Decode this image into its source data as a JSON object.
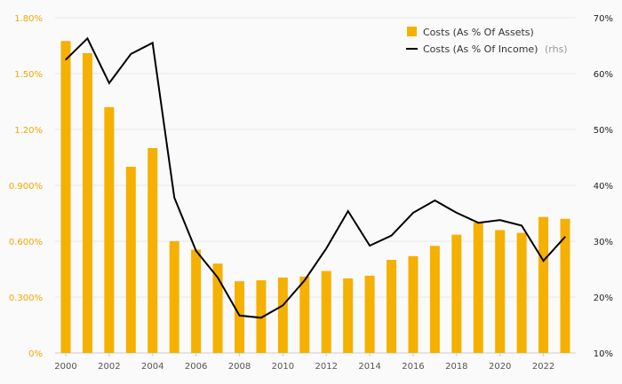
{
  "chart_data": {
    "type": "bar+line",
    "x": [
      2000,
      2001,
      2002,
      2003,
      2004,
      2005,
      2006,
      2007,
      2008,
      2009,
      2010,
      2011,
      2012,
      2013,
      2014,
      2015,
      2016,
      2017,
      2018,
      2019,
      2020,
      2021,
      2022,
      2023
    ],
    "x_tick_labels": [
      "2000",
      "2002",
      "2004",
      "2006",
      "2008",
      "2010",
      "2012",
      "2014",
      "2016",
      "2018",
      "2020",
      "2022"
    ],
    "series": [
      {
        "name": "Costs (As % Of Assets)",
        "type": "bar",
        "axis": "left",
        "color": "#f5b000",
        "values": [
          1.675,
          1.61,
          1.32,
          1.0,
          1.1,
          0.6,
          0.555,
          0.48,
          0.385,
          0.39,
          0.405,
          0.41,
          0.44,
          0.4,
          0.415,
          0.5,
          0.52,
          0.575,
          0.635,
          0.7,
          0.66,
          0.645,
          0.73,
          0.72
        ]
      },
      {
        "name": "Costs (As % Of Income)",
        "name_suffix": "(rhs)",
        "type": "line",
        "axis": "right",
        "color": "#000000",
        "values": [
          62.5,
          66.3,
          58.3,
          63.5,
          65.5,
          37.8,
          28.3,
          23.5,
          16.7,
          16.3,
          18.5,
          23.0,
          28.7,
          35.4,
          29.2,
          31.0,
          35.1,
          37.3,
          35.1,
          33.3,
          33.8,
          32.8,
          26.5,
          30.8
        ]
      }
    ],
    "y_left": {
      "lim": [
        0,
        1.8
      ],
      "ticks": [
        0,
        0.3,
        0.6,
        0.9,
        1.2,
        1.5,
        1.8
      ],
      "tick_labels": [
        "0%",
        "0.300%",
        "0.600%",
        "0.900%",
        "1.20%",
        "1.50%",
        "1.80%"
      ]
    },
    "y_right": {
      "lim": [
        10,
        70
      ],
      "ticks": [
        10,
        20,
        30,
        40,
        50,
        60,
        70
      ],
      "tick_labels": [
        "10%",
        "20%",
        "30%",
        "40%",
        "50%",
        "60%",
        "70%"
      ]
    },
    "grid": true,
    "legend_position": "top-right"
  }
}
